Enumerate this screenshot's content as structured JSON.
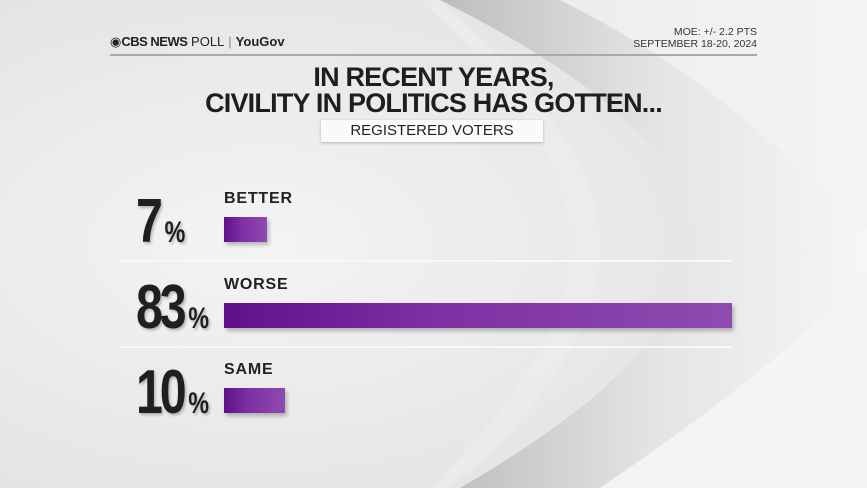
{
  "header": {
    "brand": "CBS NEWS",
    "poll_label": "POLL",
    "partner": "YouGov",
    "moe": "MOE: +/- 2.2 PTS",
    "dates": "SEPTEMBER 18-20, 2024"
  },
  "chart_data": {
    "type": "bar",
    "orientation": "horizontal",
    "title_line1": "IN RECENT YEARS,",
    "title_line2": "CIVILITY IN POLITICS HAS GOTTEN...",
    "subtitle": "REGISTERED VOTERS",
    "categories": [
      "BETTER",
      "WORSE",
      "SAME"
    ],
    "values": [
      7,
      83,
      10
    ],
    "value_labels": [
      "7",
      "83",
      "10"
    ],
    "unit": "%",
    "bar_color": "#7d2fa3",
    "xlim": [
      0,
      83
    ]
  }
}
